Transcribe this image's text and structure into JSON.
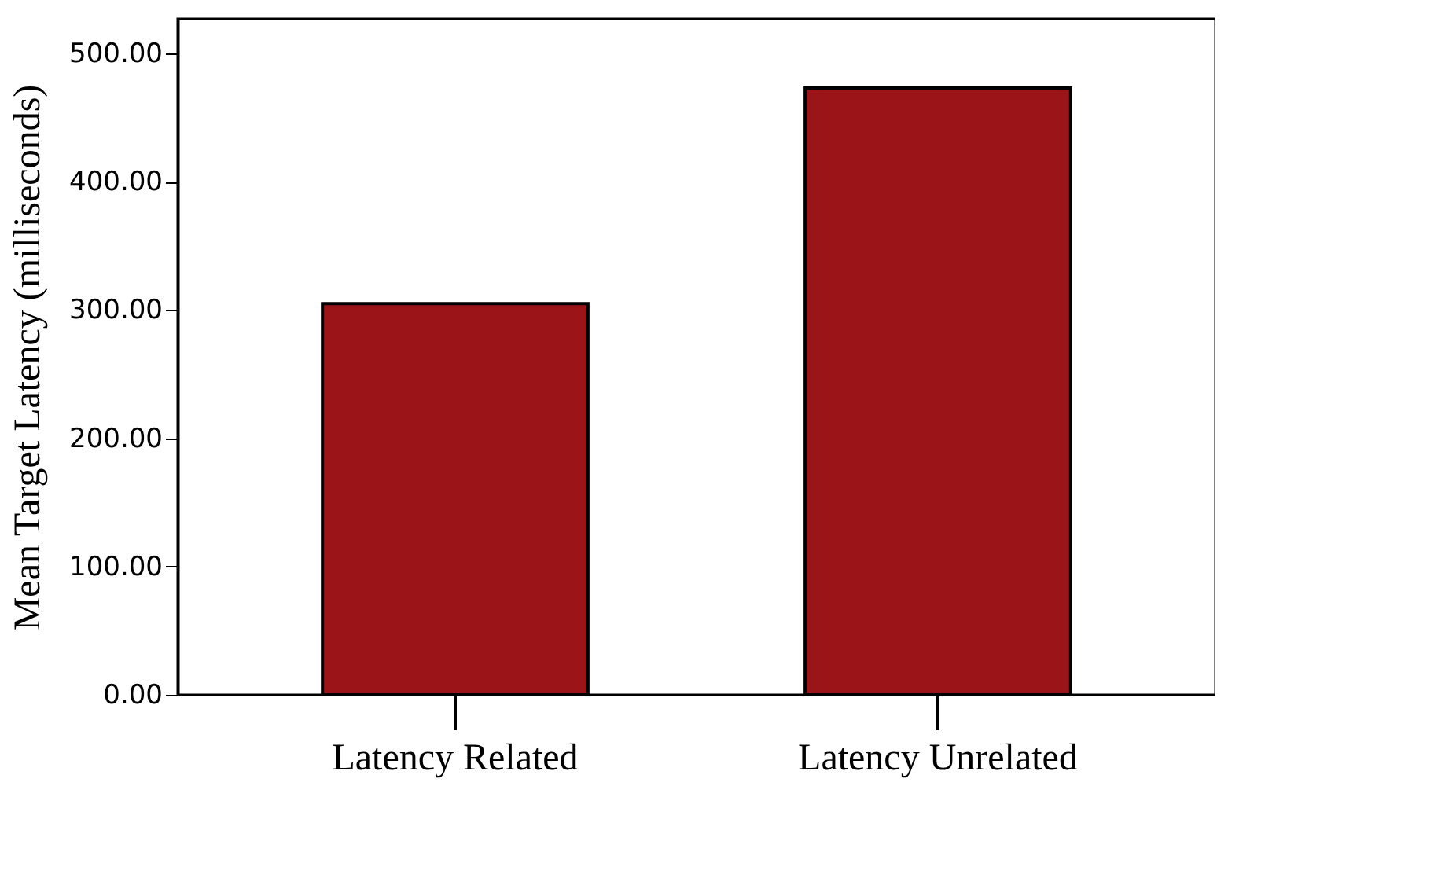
{
  "chart_data": {
    "type": "bar",
    "ylabel": "Mean Target Latency (milliseconds)",
    "categories": [
      "Latency Related",
      "Latency Unrelated"
    ],
    "values": [
      305,
      473
    ],
    "color": "#9b1518",
    "ylim": [
      0,
      527
    ],
    "yticks": [
      {
        "value": 0,
        "label": "0.00"
      },
      {
        "value": 100,
        "label": "100.00"
      },
      {
        "value": 200,
        "label": "200.00"
      },
      {
        "value": 300,
        "label": "300.00"
      },
      {
        "value": 400,
        "label": "400.00"
      },
      {
        "value": 500,
        "label": "500.00"
      }
    ],
    "grid": false
  }
}
